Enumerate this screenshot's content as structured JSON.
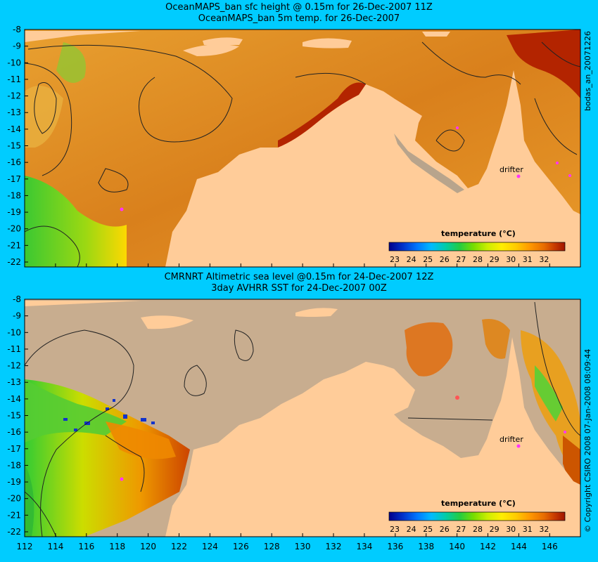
{
  "top_panel": {
    "title_line1": "OceanMAPS_ban sfc height @ 0.15m for 26-Dec-2007 11Z",
    "title_line2": "OceanMAPS_ban 5m temp. for 26-Dec-2007",
    "side_label": "bodas_an_20071226",
    "drifter_label": "drifter",
    "colorbar_title": "temperature (°C)"
  },
  "bottom_panel": {
    "title_line1": "CMRNRT Altimetric sea level  @0.15m  for 24-Dec-2007 12Z",
    "title_line2": "3day AVHRR SST for 24-Dec-2007 00Z",
    "side_label": "© Copyright CSIRO 2008   07-Jan-2008 08:09:44",
    "drifter_label": "drifter",
    "colorbar_title": "temperature (°C)"
  },
  "y_ticks": [
    "-8",
    "-9",
    "-10",
    "-11",
    "-12",
    "-13",
    "-14",
    "-15",
    "-16",
    "-17",
    "-18",
    "-19",
    "-20",
    "-21",
    "-22"
  ],
  "x_ticks": [
    "112",
    "114",
    "116",
    "118",
    "120",
    "122",
    "124",
    "126",
    "128",
    "130",
    "132",
    "134",
    "136",
    "138",
    "140",
    "142",
    "144",
    "146"
  ],
  "colorbar_ticks": [
    "23",
    "24",
    "25",
    "26",
    "27",
    "28",
    "29",
    "30",
    "31",
    "32"
  ],
  "colors": {
    "background": "#00ccff",
    "land": "#ffcc99",
    "no_data": "#c8ad8f",
    "warm": "#d9761a",
    "hot": "#b32400",
    "cool": "#33cc33",
    "drifter": "#ff33ff"
  },
  "colorbar_colors": [
    "#00008b",
    "#0033cc",
    "#0077ff",
    "#00bbff",
    "#00ccaa",
    "#22cc44",
    "#77dd00",
    "#ccee00",
    "#ffee00",
    "#ffcc00",
    "#ff9900",
    "#e86d00",
    "#c83c00",
    "#a01400"
  ]
}
